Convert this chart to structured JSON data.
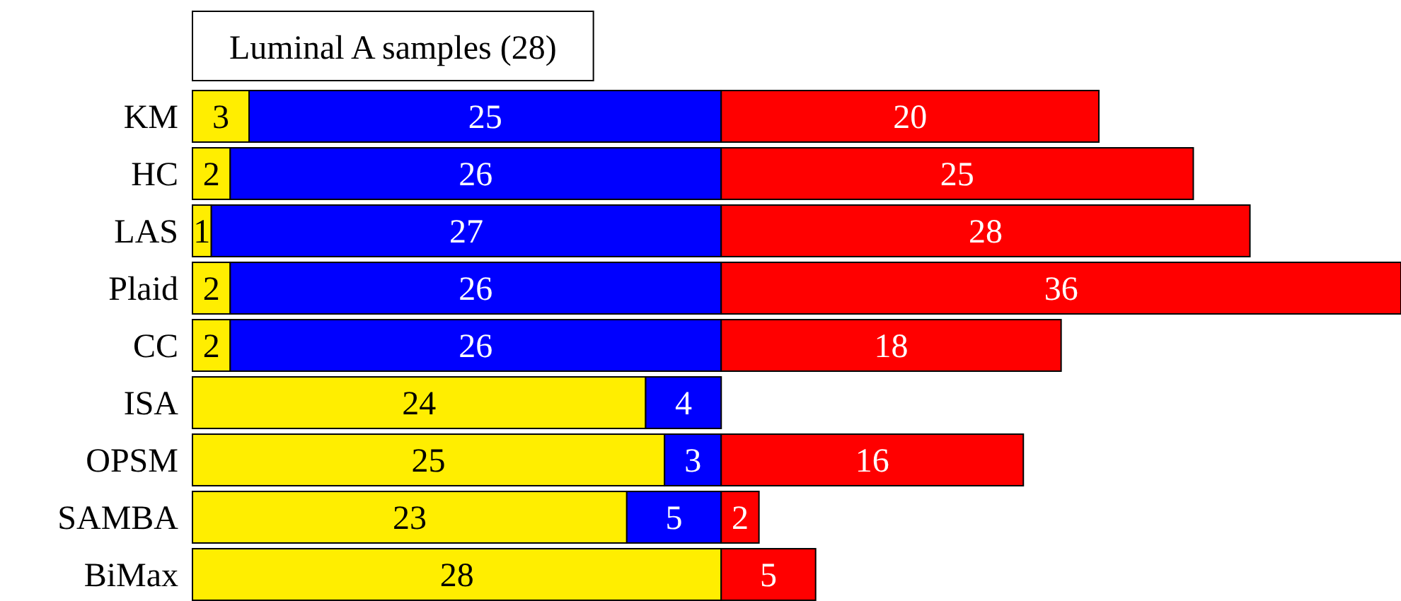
{
  "chart_data": {
    "type": "bar",
    "title": "Luminal A samples (28)",
    "orientation": "horizontal",
    "stacked": true,
    "data_labels": true,
    "categories": [
      "KM",
      "HC",
      "LAS",
      "Plaid",
      "CC",
      "ISA",
      "OPSM",
      "SAMBA",
      "BiMax"
    ],
    "series": [
      {
        "color": "#ffee00",
        "values": [
          3,
          2,
          1,
          2,
          2,
          24,
          25,
          23,
          28
        ]
      },
      {
        "color": "#0000ff",
        "values": [
          25,
          26,
          27,
          26,
          26,
          4,
          3,
          5,
          null
        ]
      },
      {
        "color": "#ff0000",
        "values": [
          20,
          25,
          28,
          36,
          18,
          null,
          16,
          2,
          5
        ]
      }
    ]
  }
}
